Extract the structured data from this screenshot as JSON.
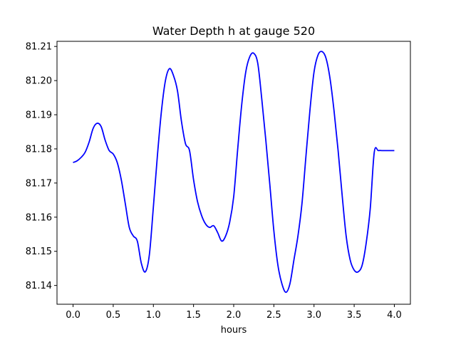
{
  "chart_data": {
    "type": "line",
    "title": "Water Depth h at gauge 520",
    "xlabel": "hours",
    "ylabel": "",
    "xlim": [
      -0.2,
      4.2
    ],
    "ylim": [
      81.1345,
      81.2115
    ],
    "xticks": [
      0.0,
      0.5,
      1.0,
      1.5,
      2.0,
      2.5,
      3.0,
      3.5,
      4.0
    ],
    "xtick_labels": [
      "0.0",
      "0.5",
      "1.0",
      "1.5",
      "2.0",
      "2.5",
      "3.0",
      "3.5",
      "4.0"
    ],
    "yticks": [
      81.14,
      81.15,
      81.16,
      81.17,
      81.18,
      81.19,
      81.2,
      81.21
    ],
    "ytick_labels": [
      "81.14",
      "81.15",
      "81.16",
      "81.17",
      "81.18",
      "81.19",
      "81.20",
      "81.21"
    ],
    "grid": false,
    "legend": "none",
    "series": [
      {
        "color": "#0000ff",
        "x": [
          0.0,
          0.05,
          0.1,
          0.15,
          0.2,
          0.25,
          0.3,
          0.35,
          0.4,
          0.45,
          0.5,
          0.55,
          0.6,
          0.65,
          0.7,
          0.75,
          0.8,
          0.85,
          0.9,
          0.95,
          1.0,
          1.05,
          1.1,
          1.15,
          1.2,
          1.25,
          1.3,
          1.35,
          1.4,
          1.45,
          1.5,
          1.55,
          1.6,
          1.65,
          1.7,
          1.75,
          1.8,
          1.85,
          1.9,
          1.95,
          2.0,
          2.05,
          2.1,
          2.15,
          2.2,
          2.25,
          2.3,
          2.35,
          2.4,
          2.45,
          2.5,
          2.55,
          2.6,
          2.65,
          2.7,
          2.75,
          2.8,
          2.85,
          2.9,
          2.95,
          3.0,
          3.05,
          3.1,
          3.15,
          3.2,
          3.25,
          3.3,
          3.35,
          3.4,
          3.45,
          3.5,
          3.55,
          3.6,
          3.65,
          3.7,
          3.75,
          3.8,
          3.85,
          3.9,
          3.95,
          4.0
        ],
        "y": [
          81.176,
          81.1765,
          81.1775,
          81.179,
          81.182,
          81.186,
          81.1875,
          81.1865,
          81.1825,
          81.1795,
          81.1785,
          81.176,
          81.171,
          81.164,
          81.157,
          81.1545,
          81.153,
          81.1465,
          81.144,
          81.149,
          81.163,
          81.178,
          81.191,
          81.2,
          81.2035,
          81.2015,
          81.197,
          81.188,
          81.1815,
          81.1795,
          81.171,
          81.1645,
          81.1605,
          81.158,
          81.157,
          81.1575,
          81.1555,
          81.153,
          81.1545,
          81.1585,
          81.166,
          81.18,
          81.193,
          81.2025,
          81.207,
          81.208,
          81.205,
          81.1945,
          81.1825,
          81.1695,
          81.156,
          81.146,
          81.1405,
          81.138,
          81.1405,
          81.1475,
          81.1545,
          81.164,
          81.178,
          81.1915,
          81.2025,
          81.2075,
          81.2085,
          81.2065,
          81.2005,
          81.191,
          81.1795,
          81.1665,
          81.1545,
          81.1475,
          81.1445,
          81.144,
          81.146,
          81.1525,
          81.1625,
          81.179,
          81.1795,
          81.1795,
          81.1795,
          81.1795,
          81.1795
        ]
      }
    ]
  }
}
